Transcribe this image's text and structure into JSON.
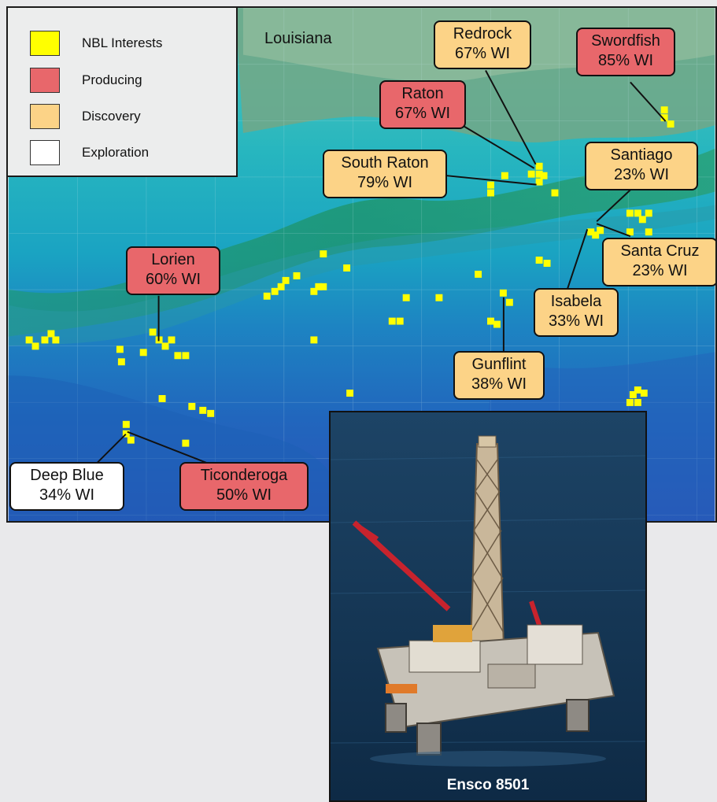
{
  "map": {
    "state_label": "Louisiana",
    "legend": [
      {
        "label": "NBL Interests",
        "color": "#ffff00"
      },
      {
        "label": "Producing",
        "color": "#e8676b"
      },
      {
        "label": "Discovery",
        "color": "#fcd387"
      },
      {
        "label": "Exploration",
        "color": "#ffffff"
      }
    ],
    "callouts": [
      {
        "name": "Redrock",
        "wi": "67% WI",
        "status": "discovery"
      },
      {
        "name": "Swordfish",
        "wi": "85% WI",
        "status": "producing"
      },
      {
        "name": "Raton",
        "wi": "67% WI",
        "status": "producing"
      },
      {
        "name": "South Raton",
        "wi": "79% WI",
        "status": "discovery"
      },
      {
        "name": "Santiago",
        "wi": "23% WI",
        "status": "discovery"
      },
      {
        "name": "Santa Cruz",
        "wi": "23% WI",
        "status": "discovery"
      },
      {
        "name": "Lorien",
        "wi": "60% WI",
        "status": "producing"
      },
      {
        "name": "Isabela",
        "wi": "33% WI",
        "status": "discovery"
      },
      {
        "name": "Gunflint",
        "wi": "38% WI",
        "status": "discovery"
      },
      {
        "name": "Deep Blue",
        "wi": "34% WI",
        "status": "exploration"
      },
      {
        "name": "Ticonderoga",
        "wi": "50% WI",
        "status": "producing"
      }
    ]
  },
  "photo": {
    "caption": "Ensco 8501"
  },
  "colors": {
    "interest_block": "#ffff00",
    "producing": "#e8676b",
    "discovery": "#fcd387",
    "exploration": "#ffffff",
    "deep_water": "#1f63b8",
    "shelf_water": "#35b9c0",
    "land": "#7fae8f"
  }
}
